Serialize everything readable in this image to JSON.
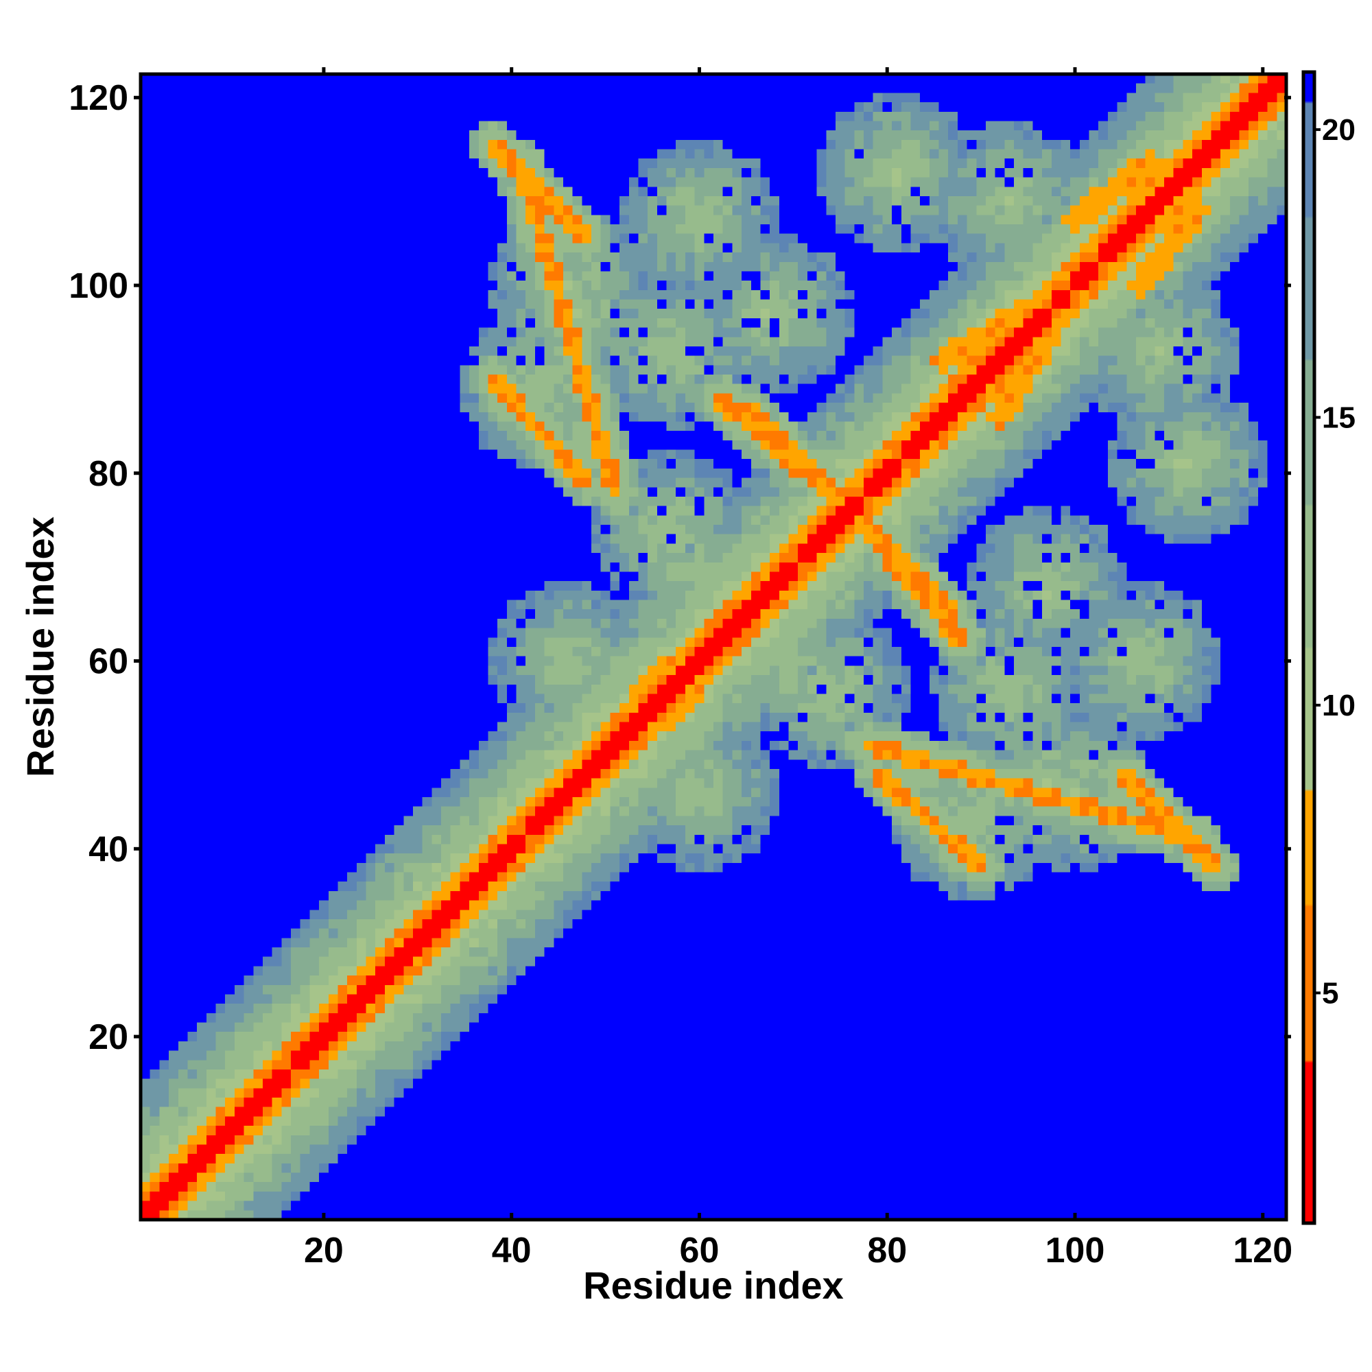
{
  "chart_data": {
    "type": "heatmap",
    "title": "",
    "xlabel": "Residue index",
    "ylabel": "Residue index",
    "xlim": [
      1,
      122
    ],
    "ylim": [
      1,
      122
    ],
    "x_ticks": [
      20,
      40,
      60,
      80,
      100,
      120
    ],
    "y_ticks": [
      20,
      40,
      60,
      80,
      100,
      120
    ],
    "z_label": "",
    "z_range": [
      1,
      21
    ],
    "colorbar_ticks": [
      5,
      10,
      15,
      20
    ],
    "background_value": 21,
    "colormap": [
      {
        "max": 3.8,
        "color": "#ff0000"
      },
      {
        "max": 6.5,
        "color": "#ff7a00"
      },
      {
        "max": 8.5,
        "color": "#ffa500"
      },
      {
        "max": 11.0,
        "color": "#a6c48a"
      },
      {
        "max": 13.5,
        "color": "#97bb8c"
      },
      {
        "max": 16.0,
        "color": "#86ad92"
      },
      {
        "max": 18.5,
        "color": "#6f98a6"
      },
      {
        "max": 20.5,
        "color": "#5d85b4"
      },
      {
        "max": 22.0,
        "color": "#0000ff"
      }
    ],
    "structure": {
      "residues": 122,
      "diagonal_band": "distance ~ 1 on main diagonal, rising with |i-j| up to ~14",
      "lobe_centers": [
        [
          47,
          97
        ],
        [
          68,
          97
        ],
        [
          57,
          74
        ],
        [
          70,
          60
        ],
        [
          46,
          60
        ],
        [
          93,
          57
        ],
        [
          100,
          46
        ],
        [
          89,
          43
        ],
        [
          107,
          60
        ],
        [
          97,
          97
        ],
        [
          109,
          93
        ],
        [
          112,
          81
        ]
      ],
      "antiparallel_contacts": [
        {
          "from": [
            41,
            113
          ],
          "to": [
            51,
            78
          ]
        },
        {
          "from": [
            65,
            87
          ],
          "to": [
            76,
            76
          ]
        },
        {
          "from": [
            76,
            76
          ],
          "to": [
            88,
            62
          ]
        },
        {
          "from": [
            79,
            48
          ],
          "to": [
            90,
            38
          ]
        },
        {
          "from": [
            105,
            48
          ],
          "to": [
            115,
            38
          ]
        }
      ],
      "parallel_contacts": [
        {
          "from": [
            54,
            57
          ],
          "to": [
            62,
            63
          ]
        },
        {
          "from": [
            86,
            92
          ],
          "to": [
            96,
            98
          ]
        },
        {
          "from": [
            100,
            107
          ],
          "to": [
            108,
            113
          ]
        }
      ]
    }
  }
}
